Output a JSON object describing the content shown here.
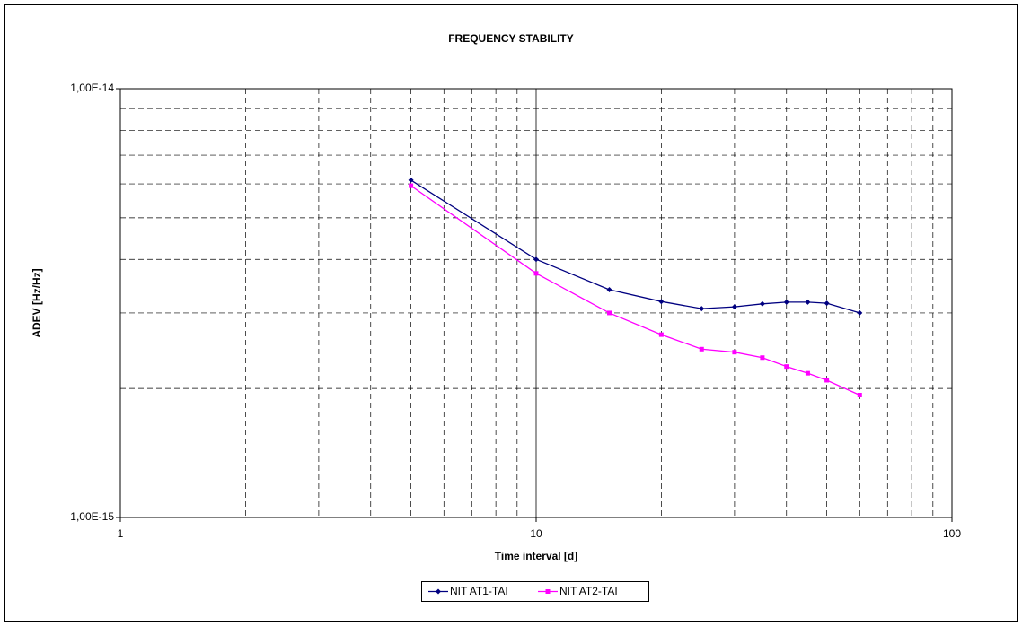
{
  "chart_data": {
    "type": "line",
    "title": "FREQUENCY STABILITY",
    "x_label": "Time interval [d]",
    "y_label": "ADEV [Hz/Hz]",
    "x": [
      5,
      10,
      15,
      20,
      25,
      30,
      35,
      40,
      45,
      50,
      60
    ],
    "series": [
      {
        "name": "NIT AT1-TAI",
        "color": "#000080",
        "marker": "diamond",
        "values": [
          6.12e-15,
          4e-15,
          3.4e-15,
          3.19e-15,
          3.07e-15,
          3.1e-15,
          3.15e-15,
          3.18e-15,
          3.18e-15,
          3.16e-15,
          3e-15
        ]
      },
      {
        "name": "NIT AT2-TAI",
        "color": "#ff00ff",
        "marker": "square",
        "values": [
          5.94e-15,
          3.71e-15,
          3e-15,
          2.67e-15,
          2.47e-15,
          2.43e-15,
          2.36e-15,
          2.25e-15,
          2.17e-15,
          2.09e-15,
          1.93e-15
        ]
      }
    ],
    "xlog": true,
    "ylog": true,
    "xlim": [
      1,
      100
    ],
    "ylim": [
      1e-15,
      1e-14
    ],
    "xticks": [
      1,
      10,
      100
    ],
    "yticks": [
      {
        "value": 1e-15,
        "label": "1,00E-15"
      },
      {
        "value": 1e-14,
        "label": "1,00E-14"
      }
    ],
    "xminor": [
      2,
      3,
      4,
      5,
      6,
      7,
      8,
      9,
      20,
      30,
      40,
      50,
      60,
      70,
      80,
      90
    ],
    "yminor": [
      2e-15,
      3e-15,
      4e-15,
      5e-15,
      6e-15,
      7e-15,
      8e-15,
      9e-15
    ],
    "grid": true,
    "legend": "bottom"
  }
}
